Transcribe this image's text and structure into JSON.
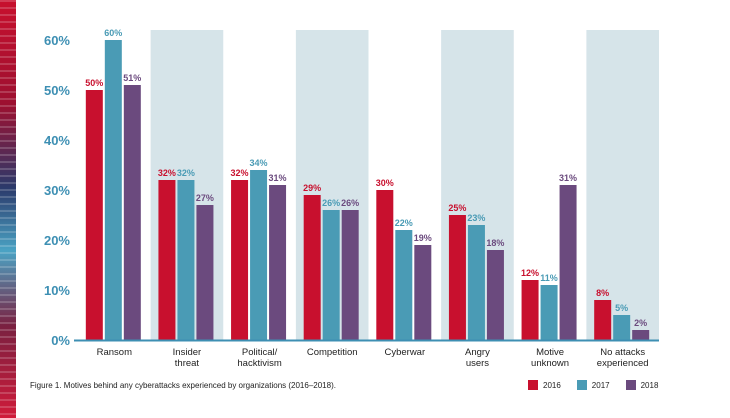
{
  "chart_data": {
    "type": "bar",
    "categories": [
      [
        "Ransom"
      ],
      [
        "Insider",
        "threat"
      ],
      [
        "Political/",
        "hacktivism"
      ],
      [
        "Competition"
      ],
      [
        "Cyberwar"
      ],
      [
        "Angry",
        "users"
      ],
      [
        "Motive",
        "unknown"
      ],
      [
        "No attacks",
        "experienced"
      ]
    ],
    "series": [
      {
        "name": "2016",
        "color": "#c8102e",
        "values": [
          50,
          32,
          32,
          29,
          30,
          25,
          12,
          8
        ]
      },
      {
        "name": "2017",
        "color": "#4a9bb5",
        "values": [
          60,
          32,
          34,
          26,
          22,
          23,
          11,
          5
        ]
      },
      {
        "name": "2018",
        "color": "#6b4a7e",
        "values": [
          51,
          27,
          31,
          26,
          19,
          18,
          31,
          2
        ]
      }
    ],
    "yticks": [
      "0%",
      "10%",
      "20%",
      "30%",
      "40%",
      "50%",
      "60%"
    ],
    "ylim": [
      0,
      60
    ],
    "grid": false,
    "legend": "bottom-right",
    "band_color": "#d6e4e9",
    "axis_color": "#3d8fb3"
  },
  "caption": "Figure 1. Motives behind any cyberattacks experienced by organizations (2016–2018)."
}
